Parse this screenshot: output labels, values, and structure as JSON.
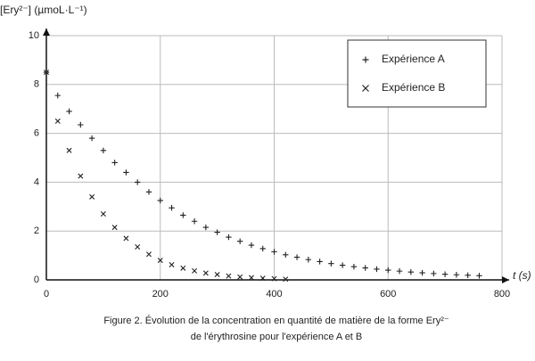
{
  "chart_data": {
    "type": "scatter",
    "y_label": "[Ery²⁻] (µmoL·L⁻¹)",
    "x_label": "t (s)",
    "caption": [
      "Figure 2. Évolution de la concentration en quantité de matière de la forme Ery²⁻",
      "de l'érythrosine pour l'expérience A et B"
    ],
    "xlim": [
      0,
      800
    ],
    "xticks": [
      0,
      200,
      400,
      600,
      800
    ],
    "ylim": [
      0,
      10
    ],
    "yticks": [
      0,
      2,
      4,
      6,
      8,
      10
    ],
    "grid": true,
    "legend": "upper right",
    "series": [
      {
        "name": "Expérience A",
        "marker": "+",
        "color": "#222222",
        "x": [
          0,
          20,
          40,
          60,
          80,
          100,
          120,
          140,
          160,
          180,
          200,
          220,
          240,
          260,
          280,
          300,
          320,
          340,
          360,
          380,
          400,
          420,
          440,
          460,
          480,
          500,
          520,
          540,
          560,
          580,
          600,
          620,
          640,
          660,
          680,
          700,
          720,
          740,
          760
        ],
        "values": [
          8.5,
          7.55,
          6.9,
          6.35,
          5.8,
          5.3,
          4.8,
          4.4,
          4.0,
          3.6,
          3.25,
          2.95,
          2.65,
          2.4,
          2.15,
          1.95,
          1.75,
          1.58,
          1.42,
          1.28,
          1.15,
          1.03,
          0.93,
          0.83,
          0.75,
          0.67,
          0.6,
          0.54,
          0.49,
          0.44,
          0.4,
          0.36,
          0.32,
          0.29,
          0.26,
          0.23,
          0.21,
          0.19,
          0.17
        ]
      },
      {
        "name": "Expérience B",
        "marker": "x",
        "color": "#222222",
        "x": [
          0,
          20,
          40,
          60,
          80,
          100,
          120,
          140,
          160,
          180,
          200,
          220,
          240,
          260,
          280,
          300,
          320,
          340,
          360,
          380,
          400,
          420
        ],
        "values": [
          8.5,
          6.5,
          5.3,
          4.25,
          3.4,
          2.7,
          2.15,
          1.7,
          1.35,
          1.05,
          0.8,
          0.62,
          0.48,
          0.37,
          0.28,
          0.22,
          0.16,
          0.12,
          0.09,
          0.07,
          0.05,
          0.03
        ]
      }
    ]
  }
}
